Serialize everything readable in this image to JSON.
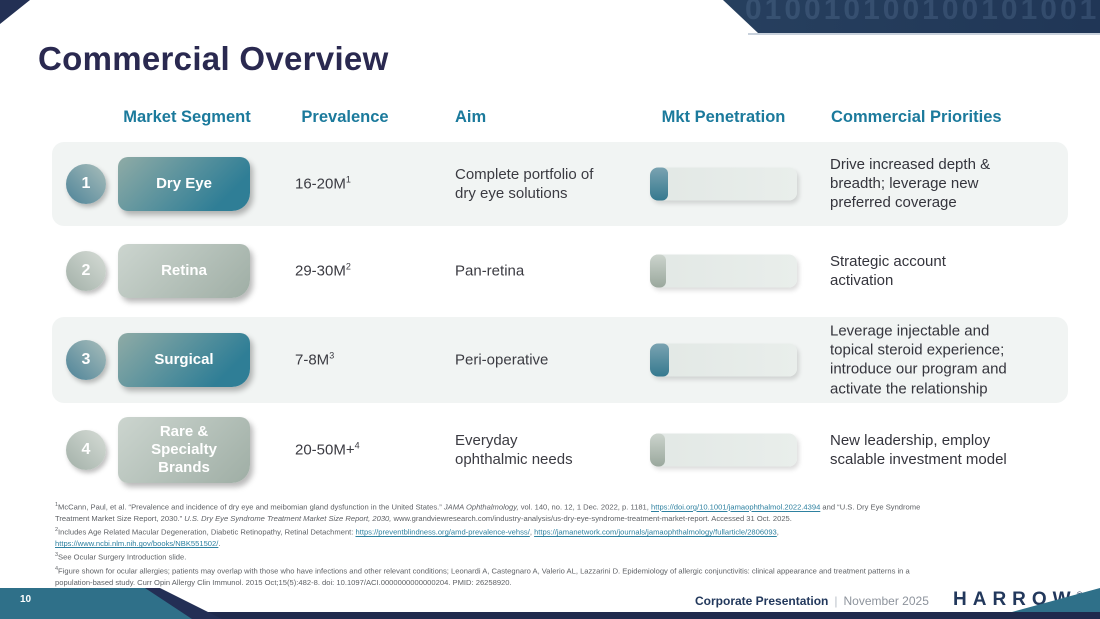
{
  "slide": {
    "title": "Commercial Overview",
    "page_number": "10"
  },
  "decor": {
    "pattern_text": "0100101001001010010010100100101001001010010010"
  },
  "colors": {
    "title_navy": "#2a2950",
    "banner_navy": "#27405f",
    "header_teal": "#1b7a9c",
    "button_teal": "#2f7e96",
    "button_sage": "#9faea5",
    "band_gray": "#f1f4f3",
    "footer_navy": "#22385c",
    "wedge_teal": "#2f7089"
  },
  "table": {
    "headers": [
      "Market Segment",
      "Prevalence",
      "Aim",
      "Mkt Penetration",
      "Commercial Priorities"
    ],
    "rows": [
      {
        "number": "1",
        "segment": "Dry Eye",
        "prevalence": "16-20M",
        "prevalence_sup": "1",
        "aim": "Complete portfolio of\ndry eye solutions",
        "penetration_pct": 12,
        "priorities": "Drive increased depth &\nbreadth; leverage new\npreferred coverage"
      },
      {
        "number": "2",
        "segment": "Retina",
        "prevalence": "29-30M",
        "prevalence_sup": "2",
        "aim": "Pan-retina",
        "penetration_pct": 11,
        "priorities": "Strategic account\nactivation"
      },
      {
        "number": "3",
        "segment": "Surgical",
        "prevalence": "7-8M",
        "prevalence_sup": "3",
        "aim": "Peri-operative",
        "penetration_pct": 13,
        "priorities": "Leverage injectable and\ntopical steroid experience;\nintroduce our program and\nactivate the relationship"
      },
      {
        "number": "4",
        "segment": "Rare & Specialty Brands",
        "prevalence": "20-50M+",
        "prevalence_sup": "4",
        "aim": "Everyday\nophthalmic needs",
        "penetration_pct": 10,
        "priorities": "New leadership, employ\nscalable investment model"
      }
    ]
  },
  "footnotes": [
    [
      {
        "t": "1",
        "s": "sup"
      },
      {
        "t": "McCann, Paul, et al. “Prevalence and incidence of dry eye and meibomian gland dysfunction in the United States.” "
      },
      {
        "t": "JAMA Ophthalmology,",
        "s": "i"
      },
      {
        "t": " vol. 140, no. 12, 1 Dec. 2022, p. 1181, "
      },
      {
        "t": "https://doi.org/10.1001/jamaophthalmol.2022.4394",
        "s": "link"
      },
      {
        "t": " and “U.S. Dry Eye Syndrome"
      }
    ],
    [
      {
        "t": "Treatment Market Size Report, 2030.” "
      },
      {
        "t": "U.S. Dry Eye Syndrome Treatment Market Size Report, 2030,",
        "s": "i"
      },
      {
        "t": " www.grandviewresearch.com/industry-analysis/us-dry-eye-syndrome-treatment-market-report. Accessed 31 Oct. 2025."
      }
    ],
    [
      {
        "t": "2",
        "s": "sup"
      },
      {
        "t": "Includes Age Related Macular Degeneration, Diabetic Retinopathy, Retinal Detachment: "
      },
      {
        "t": "https://preventblindness.org/amd-prevalence-vehss/",
        "s": "link"
      },
      {
        "t": ", "
      },
      {
        "t": "https://jamanetwork.com/journals/jamaophthalmology/fullarticle/2806093",
        "s": "link"
      },
      {
        "t": ","
      }
    ],
    [
      {
        "t": "https://www.ncbi.nlm.nih.gov/books/NBK551502/",
        "s": "link"
      },
      {
        "t": "."
      }
    ],
    [
      {
        "t": "3",
        "s": "sup"
      },
      {
        "t": "See Ocular Surgery Introduction slide."
      }
    ],
    [
      {
        "t": "4",
        "s": "sup"
      },
      {
        "t": "Figure shown for ocular allergies; patients may overlap with those who have infections and other relevant conditions; Leonardi A, Castegnaro A, Valerio AL, Lazzarini D. Epidemiology of allergic conjunctivitis: clinical appearance and treatment patterns in a"
      }
    ],
    [
      {
        "t": "population-based study. Curr Opin Allergy Clin Immunol. 2015 Oct;15(5):482-8. doi: 10.1097/ACI.0000000000000204. PMID: 26258920."
      }
    ]
  ],
  "footer": {
    "label": "Corporate Presentation",
    "divider": "|",
    "date": "November 2025",
    "logo": "HARROW",
    "logo_mark": "®"
  }
}
